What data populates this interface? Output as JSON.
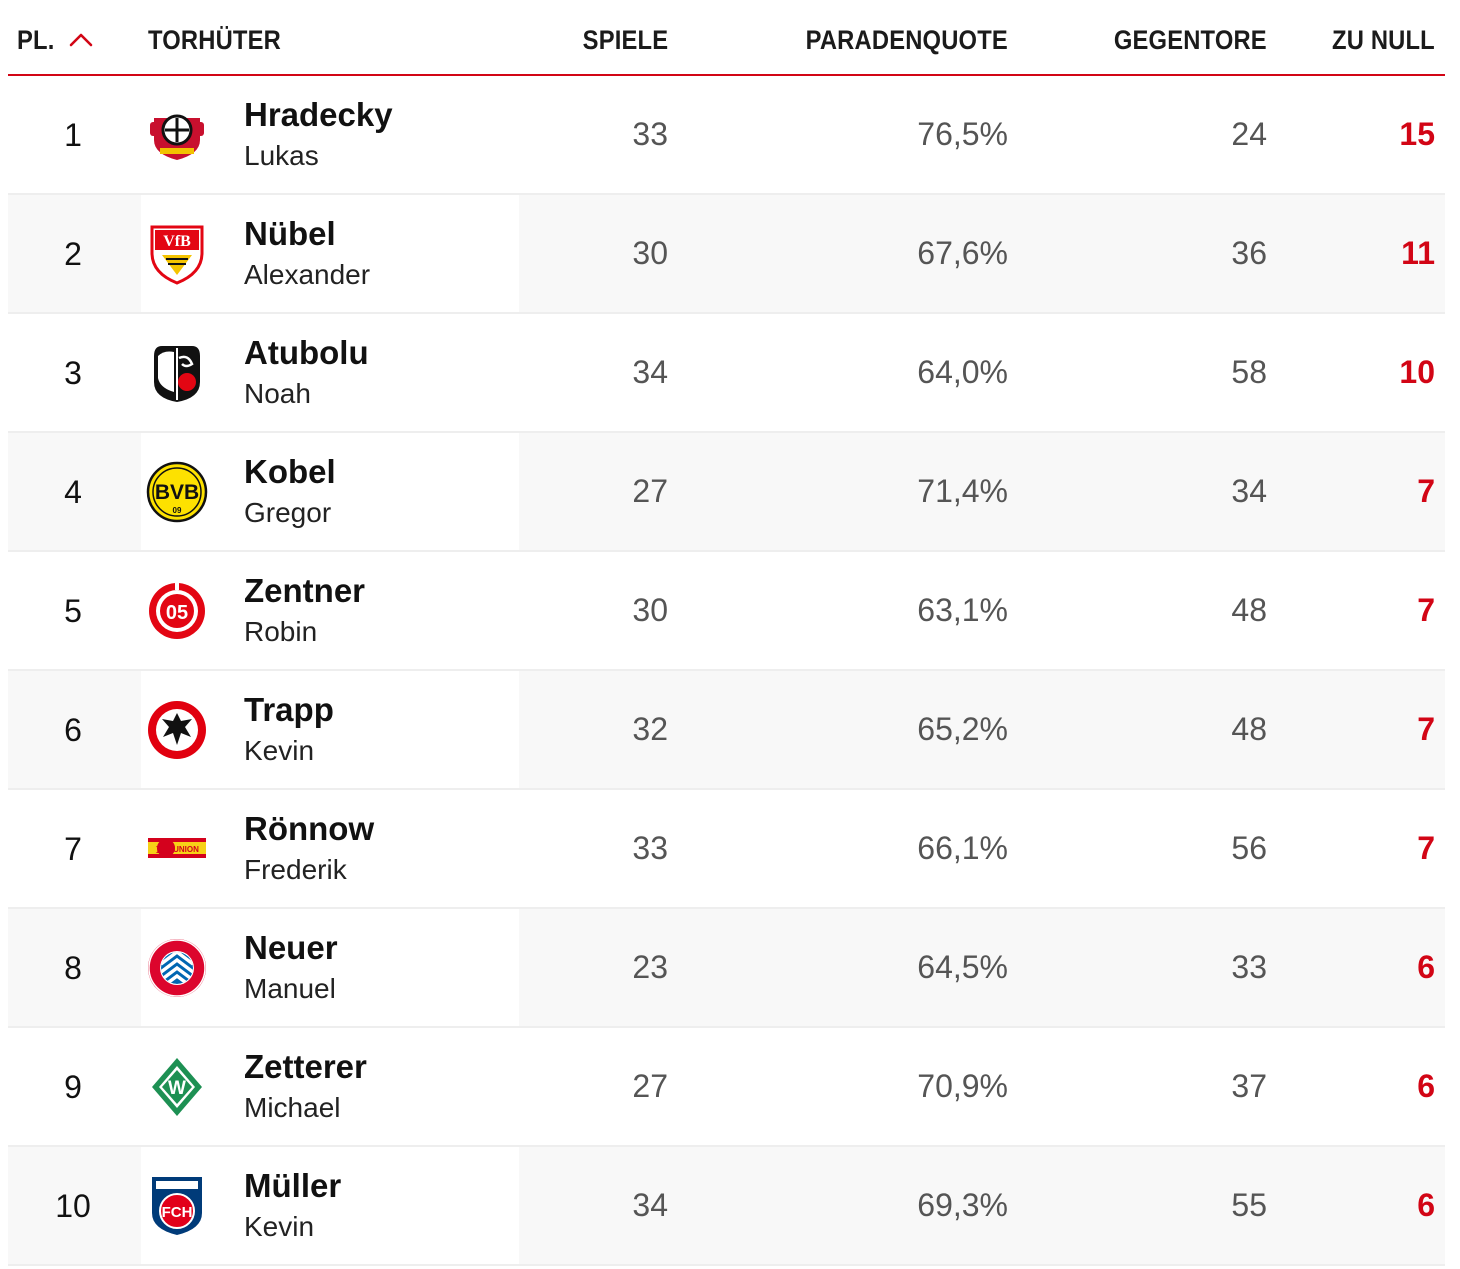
{
  "colors": {
    "accent": "#d20515",
    "text": "#111111",
    "muted": "#555555",
    "row_alt": "#f8f8f8"
  },
  "header": {
    "rank": "PL.",
    "sort_icon": "chevron-up-icon",
    "name": "TORHÜTER",
    "spiele": "SPIELE",
    "quote": "PARADENQUOTE",
    "gegentore": "GEGENTORE",
    "zu_null": "ZU NULL"
  },
  "rows": [
    {
      "rank": "1",
      "club_icon": "leverkusen-crest-icon",
      "lastname": "Hradecky",
      "firstname": "Lukas",
      "spiele": "33",
      "quote": "76,5%",
      "gegentore": "24",
      "zu_null": "15"
    },
    {
      "rank": "2",
      "club_icon": "stuttgart-crest-icon",
      "lastname": "Nübel",
      "firstname": "Alexander",
      "spiele": "30",
      "quote": "67,6%",
      "gegentore": "36",
      "zu_null": "11"
    },
    {
      "rank": "3",
      "club_icon": "freiburg-crest-icon",
      "lastname": "Atubolu",
      "firstname": "Noah",
      "spiele": "34",
      "quote": "64,0%",
      "gegentore": "58",
      "zu_null": "10"
    },
    {
      "rank": "4",
      "club_icon": "dortmund-crest-icon",
      "lastname": "Kobel",
      "firstname": "Gregor",
      "spiele": "27",
      "quote": "71,4%",
      "gegentore": "34",
      "zu_null": "7"
    },
    {
      "rank": "5",
      "club_icon": "mainz-crest-icon",
      "lastname": "Zentner",
      "firstname": "Robin",
      "spiele": "30",
      "quote": "63,1%",
      "gegentore": "48",
      "zu_null": "7"
    },
    {
      "rank": "6",
      "club_icon": "frankfurt-crest-icon",
      "lastname": "Trapp",
      "firstname": "Kevin",
      "spiele": "32",
      "quote": "65,2%",
      "gegentore": "48",
      "zu_null": "7"
    },
    {
      "rank": "7",
      "club_icon": "union-berlin-crest-icon",
      "lastname": "Rönnow",
      "firstname": "Frederik",
      "spiele": "33",
      "quote": "66,1%",
      "gegentore": "56",
      "zu_null": "7"
    },
    {
      "rank": "8",
      "club_icon": "bayern-crest-icon",
      "lastname": "Neuer",
      "firstname": "Manuel",
      "spiele": "23",
      "quote": "64,5%",
      "gegentore": "33",
      "zu_null": "6"
    },
    {
      "rank": "9",
      "club_icon": "bremen-crest-icon",
      "lastname": "Zetterer",
      "firstname": "Michael",
      "spiele": "27",
      "quote": "70,9%",
      "gegentore": "37",
      "zu_null": "6"
    },
    {
      "rank": "10",
      "club_icon": "heidenheim-crest-icon",
      "lastname": "Müller",
      "firstname": "Kevin",
      "spiele": "34",
      "quote": "69,3%",
      "gegentore": "55",
      "zu_null": "6"
    }
  ]
}
